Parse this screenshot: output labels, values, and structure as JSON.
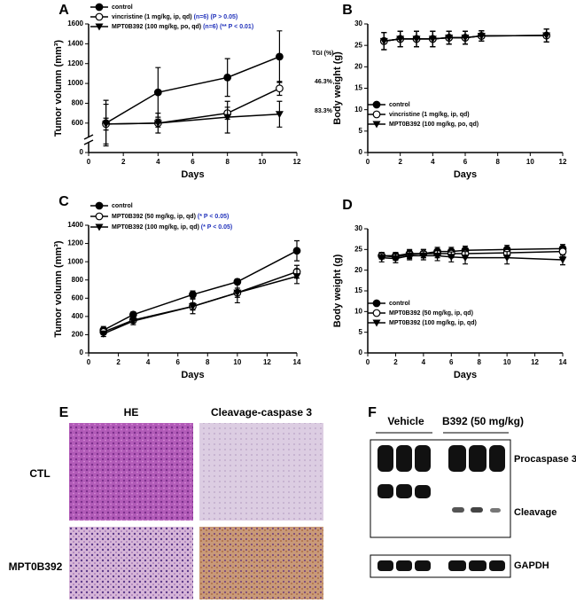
{
  "chart_data": [
    {
      "type": "line",
      "label": "A",
      "xlabel": "Days",
      "ylabel": "Tumor volumn (mm³)",
      "x": [
        1,
        4,
        8,
        11
      ],
      "xlim": [
        0,
        12
      ],
      "xticks": [
        0,
        2,
        4,
        6,
        8,
        10,
        12
      ],
      "ylim": [
        0,
        1600
      ],
      "ybreak": [
        0,
        500
      ],
      "yticks": [
        0,
        600,
        800,
        1000,
        1200,
        1400,
        1600
      ],
      "annotations": [
        "TGI (%)",
        "46.3%",
        "83.3%"
      ],
      "note_color": "#2233bb",
      "series": [
        {
          "name": "control",
          "color": "#000000",
          "marker": "circle",
          "values": [
            600,
            910,
            1060,
            1270
          ],
          "errors": [
            230,
            250,
            190,
            260
          ]
        },
        {
          "name": "vincristine (1 mg/kg, ip, qd)",
          "note": "(n=6) (P > 0.05)",
          "color": "#000000",
          "marker": "open-circle",
          "values": [
            590,
            600,
            700,
            950
          ],
          "errors": [
            60,
            40,
            60,
            70
          ]
        },
        {
          "name": "MPT0B392 (100 mg/kg, po, qd)",
          "note": "(n=6) (** P < 0.01)",
          "color": "#000000",
          "marker": "triangle-down",
          "values": [
            590,
            600,
            660,
            690
          ],
          "errors": [
            200,
            100,
            160,
            130
          ]
        }
      ]
    },
    {
      "type": "line",
      "label": "B",
      "xlabel": "Days",
      "ylabel": "Body weight (g)",
      "x": [
        1,
        2,
        3,
        4,
        5,
        6,
        7,
        11
      ],
      "xlim": [
        0,
        12
      ],
      "xticks": [
        0,
        2,
        4,
        6,
        8,
        10,
        12
      ],
      "ylim": [
        0,
        30
      ],
      "yticks": [
        0,
        5,
        10,
        15,
        20,
        25,
        30
      ],
      "series": [
        {
          "name": "control",
          "color": "#000000",
          "marker": "circle",
          "values": [
            26,
            26.5,
            26.5,
            26.5,
            26.8,
            26.8,
            27.2,
            27.3
          ],
          "errors": [
            2,
            1.8,
            1.8,
            1.8,
            1.5,
            1.5,
            1.2,
            1.5
          ]
        },
        {
          "name": "vincristine (1 mg/kg, ip, qd)",
          "color": "#000000",
          "marker": "open-circle",
          "values": [
            26,
            26.5,
            26.5,
            26.5,
            26.8,
            26.8,
            27.2,
            27.3
          ],
          "errors": [
            2,
            1.8,
            1.8,
            1.8,
            1.5,
            1.5,
            1.2,
            1.5
          ]
        },
        {
          "name": "MPT0B392 (100 mg/kg, po, qd)",
          "color": "#000000",
          "marker": "triangle-down",
          "values": [
            26,
            26.5,
            26.5,
            26.5,
            26.8,
            26.8,
            27.2,
            27.3
          ],
          "errors": [
            2,
            1.8,
            1.8,
            1.8,
            1.5,
            1.5,
            1.2,
            1.5
          ]
        }
      ]
    },
    {
      "type": "line",
      "label": "C",
      "xlabel": "Days",
      "ylabel": "Tumor volumn (mm³)",
      "x": [
        1,
        3,
        7,
        10,
        14
      ],
      "xlim": [
        0,
        14
      ],
      "xticks": [
        0,
        2,
        4,
        6,
        8,
        10,
        12,
        14
      ],
      "ylim": [
        0,
        1400
      ],
      "yticks": [
        0,
        200,
        400,
        600,
        800,
        1000,
        1200,
        1400
      ],
      "note_color": "#2233bb",
      "series": [
        {
          "name": "control",
          "color": "#000000",
          "marker": "circle",
          "values": [
            250,
            420,
            640,
            780,
            1120
          ],
          "errors": [
            40,
            30,
            40,
            30,
            110
          ]
        },
        {
          "name": "MPT0B392 (50 mg/kg, ip, qd)",
          "note": "(* P < 0.05)",
          "color": "#000000",
          "marker": "open-circle",
          "values": [
            230,
            360,
            510,
            660,
            890
          ],
          "errors": [
            30,
            30,
            40,
            50,
            70
          ]
        },
        {
          "name": "MPT0B392 (100 mg/kg, ip, qd)",
          "note": "(* P < 0.05)",
          "color": "#000000",
          "marker": "triangle-down",
          "values": [
            210,
            350,
            510,
            660,
            840
          ],
          "errors": [
            30,
            40,
            80,
            110,
            80
          ]
        }
      ]
    },
    {
      "type": "line",
      "label": "D",
      "xlabel": "Days",
      "ylabel": "Body weight (g)",
      "x": [
        1,
        2,
        3,
        4,
        5,
        6,
        7,
        10,
        14
      ],
      "xlim": [
        0,
        14
      ],
      "xticks": [
        0,
        2,
        4,
        6,
        8,
        10,
        12,
        14
      ],
      "ylim": [
        0,
        30
      ],
      "yticks": [
        0,
        5,
        10,
        15,
        20,
        25,
        30
      ],
      "series": [
        {
          "name": "control",
          "color": "#000000",
          "marker": "circle",
          "values": [
            23.5,
            23.5,
            24,
            24,
            24.5,
            24.5,
            24.8,
            25,
            25.2
          ],
          "errors": [
            0.8,
            0.8,
            1,
            1,
            1,
            1,
            1,
            1,
            1
          ]
        },
        {
          "name": "MPT0B392 (50 mg/kg, ip, qd)",
          "color": "#000000",
          "marker": "open-circle",
          "values": [
            23.5,
            23.2,
            23.8,
            24,
            24,
            24,
            24,
            24.2,
            24.5
          ],
          "errors": [
            0.8,
            0.8,
            1,
            1,
            1,
            1,
            1,
            1.2,
            1.2
          ]
        },
        {
          "name": "MPT0B392 (100 mg/kg, ip, qd)",
          "color": "#000000",
          "marker": "triangle-down",
          "values": [
            23,
            22.8,
            23.5,
            23.5,
            23.5,
            23.2,
            23,
            23,
            22.5
          ],
          "errors": [
            1,
            1,
            1,
            1,
            1.2,
            1.2,
            1.5,
            1.5,
            1.2
          ]
        }
      ]
    }
  ],
  "panel_e": {
    "label": "E",
    "columns": [
      "HE",
      "Cleavage-caspase 3"
    ],
    "rows": [
      "CTL",
      "MPT0B392"
    ]
  },
  "panel_f": {
    "label": "F",
    "groups": [
      "Vehicle",
      "B392 (50 mg/kg)"
    ],
    "bands": [
      "Procaspase 3",
      "Cleavage",
      "GAPDH"
    ]
  }
}
